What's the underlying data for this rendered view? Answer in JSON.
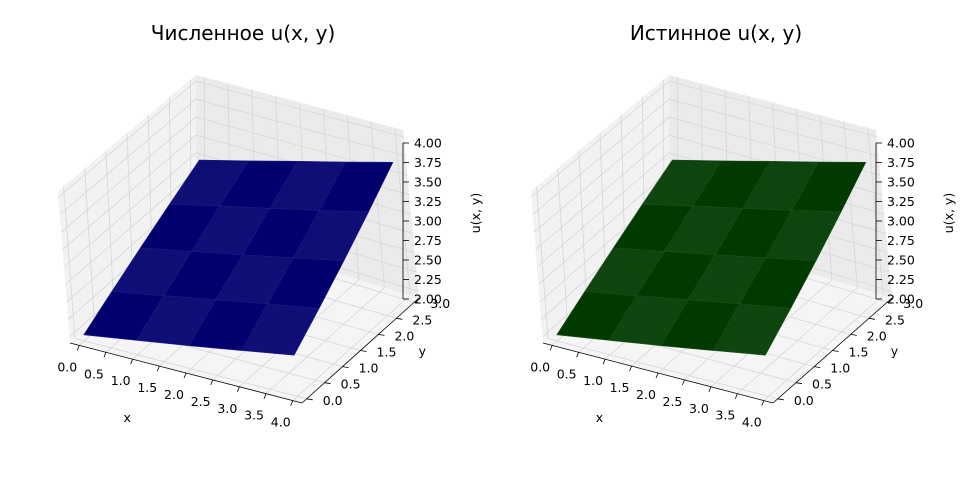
{
  "chart_data": [
    {
      "type": "surface3d",
      "title": "Численное u(x, y)",
      "xlabel": "x",
      "ylabel": "y",
      "zlabel": "u(x, y)",
      "xticks": [
        "0.0",
        "0.5",
        "1.0",
        "1.5",
        "2.0",
        "2.5",
        "3.0",
        "3.5",
        "4.0"
      ],
      "yticks": [
        "0.0",
        "0.5",
        "1.0",
        "1.5",
        "2.0",
        "2.5",
        "3.0"
      ],
      "zticks": [
        "2.00",
        "2.25",
        "2.50",
        "2.75",
        "3.00",
        "3.25",
        "3.50",
        "3.75",
        "4.00"
      ],
      "xlim": [
        0,
        4
      ],
      "ylim": [
        0,
        3
      ],
      "zlim": [
        2,
        4
      ],
      "surface_color": "#00006e",
      "x": [
        0,
        1,
        2,
        3,
        4
      ],
      "y": [
        0,
        0.75,
        1.5,
        2.25,
        3
      ],
      "z": [
        [
          2.0,
          2.12,
          2.24,
          2.37,
          2.5
        ],
        [
          2.25,
          2.39,
          2.53,
          2.67,
          2.8
        ],
        [
          2.5,
          2.65,
          2.8,
          2.95,
          3.1
        ],
        [
          2.75,
          2.92,
          3.08,
          3.24,
          3.4
        ],
        [
          3.0,
          3.18,
          3.36,
          3.53,
          3.7
        ]
      ],
      "z_note_unused": ""
    },
    {
      "type": "surface3d",
      "title": "Истинное u(x, y)",
      "xlabel": "x",
      "ylabel": "y",
      "zlabel": "u(x, y)",
      "xticks": [
        "0.0",
        "0.5",
        "1.0",
        "1.5",
        "2.0",
        "2.5",
        "3.0",
        "3.5",
        "4.0"
      ],
      "yticks": [
        "0.0",
        "0.5",
        "1.0",
        "1.5",
        "2.0",
        "2.5",
        "3.0"
      ],
      "zticks": [
        "2.00",
        "2.25",
        "2.50",
        "2.75",
        "3.00",
        "3.25",
        "3.50",
        "3.75",
        "4.00"
      ],
      "xlim": [
        0,
        4
      ],
      "ylim": [
        0,
        3
      ],
      "zlim": [
        2,
        4
      ],
      "surface_color": "#003a00",
      "x": [
        0,
        1,
        2,
        3,
        4
      ],
      "y": [
        0,
        0.75,
        1.5,
        2.25,
        3
      ],
      "z": [
        [
          2.0,
          2.12,
          2.24,
          2.37,
          2.5
        ],
        [
          2.25,
          2.39,
          2.53,
          2.67,
          2.8
        ],
        [
          2.5,
          2.65,
          2.8,
          2.95,
          3.1
        ],
        [
          2.75,
          2.92,
          3.08,
          3.24,
          3.4
        ],
        [
          3.0,
          3.18,
          3.36,
          3.53,
          3.7
        ]
      ]
    }
  ]
}
